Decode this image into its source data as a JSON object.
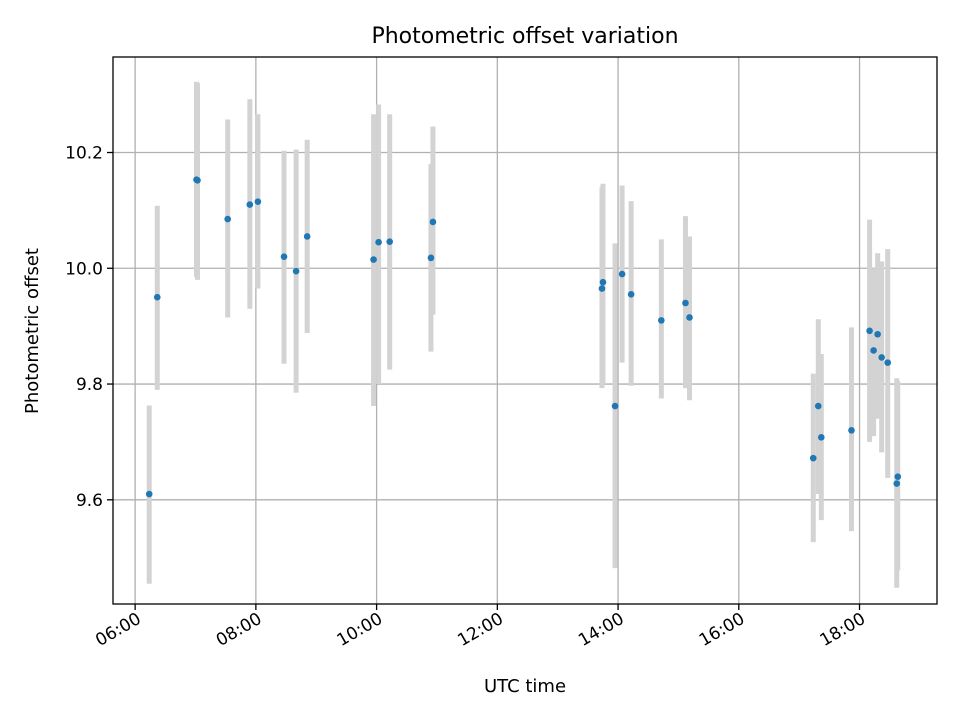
{
  "chart_data": {
    "type": "scatter",
    "title": "Photometric offset variation",
    "xlabel": "UTC time",
    "ylabel": "Photometric offset",
    "x_ticks": [
      "06:00",
      "08:00",
      "10:00",
      "12:00",
      "14:00",
      "16:00",
      "18:00"
    ],
    "y_ticks": [
      "9.6",
      "9.8",
      "10.0",
      "10.2"
    ],
    "xlim": [
      "05:38",
      "19:17"
    ],
    "ylim": [
      9.42,
      10.365
    ],
    "grid": true,
    "marker_color": "#1f77b4",
    "errorbar_color": "#d3d3d3",
    "points": [
      {
        "x": "06:14",
        "y": 9.61,
        "ylo": 9.455,
        "yhi": 9.763
      },
      {
        "x": "06:22",
        "y": 9.95,
        "ylo": 9.79,
        "yhi": 10.108
      },
      {
        "x": "07:01",
        "y": 10.153,
        "ylo": 9.985,
        "yhi": 10.322
      },
      {
        "x": "07:02",
        "y": 10.152,
        "ylo": 9.98,
        "yhi": 10.32
      },
      {
        "x": "07:32",
        "y": 10.085,
        "ylo": 9.915,
        "yhi": 10.257
      },
      {
        "x": "07:54",
        "y": 10.11,
        "ylo": 9.93,
        "yhi": 10.292
      },
      {
        "x": "08:02",
        "y": 10.115,
        "ylo": 9.965,
        "yhi": 10.266
      },
      {
        "x": "08:28",
        "y": 10.02,
        "ylo": 9.835,
        "yhi": 10.203
      },
      {
        "x": "08:40",
        "y": 9.995,
        "ylo": 9.785,
        "yhi": 10.205
      },
      {
        "x": "08:51",
        "y": 10.055,
        "ylo": 9.888,
        "yhi": 10.222
      },
      {
        "x": "09:57",
        "y": 10.015,
        "ylo": 9.762,
        "yhi": 10.266
      },
      {
        "x": "10:02",
        "y": 10.045,
        "ylo": 9.8,
        "yhi": 10.283
      },
      {
        "x": "10:13",
        "y": 10.046,
        "ylo": 9.825,
        "yhi": 10.266
      },
      {
        "x": "10:54",
        "y": 10.018,
        "ylo": 9.856,
        "yhi": 10.18
      },
      {
        "x": "10:56",
        "y": 10.08,
        "ylo": 9.92,
        "yhi": 10.245
      },
      {
        "x": "13:44",
        "y": 9.965,
        "ylo": 9.793,
        "yhi": 10.14
      },
      {
        "x": "13:45",
        "y": 9.976,
        "ylo": 9.8,
        "yhi": 10.146
      },
      {
        "x": "13:57",
        "y": 9.762,
        "ylo": 9.482,
        "yhi": 10.043
      },
      {
        "x": "14:04",
        "y": 9.99,
        "ylo": 9.837,
        "yhi": 10.143
      },
      {
        "x": "14:13",
        "y": 9.955,
        "ylo": 9.797,
        "yhi": 10.116
      },
      {
        "x": "14:43",
        "y": 9.91,
        "ylo": 9.775,
        "yhi": 10.05
      },
      {
        "x": "15:07",
        "y": 9.94,
        "ylo": 9.793,
        "yhi": 10.09
      },
      {
        "x": "15:11",
        "y": 9.915,
        "ylo": 9.772,
        "yhi": 10.055
      },
      {
        "x": "17:14",
        "y": 9.672,
        "ylo": 9.527,
        "yhi": 9.818
      },
      {
        "x": "17:19",
        "y": 9.762,
        "ylo": 9.61,
        "yhi": 9.912
      },
      {
        "x": "17:22",
        "y": 9.708,
        "ylo": 9.565,
        "yhi": 9.852
      },
      {
        "x": "17:52",
        "y": 9.72,
        "ylo": 9.546,
        "yhi": 9.898
      },
      {
        "x": "18:10",
        "y": 9.892,
        "ylo": 9.7,
        "yhi": 10.084
      },
      {
        "x": "18:14",
        "y": 9.858,
        "ylo": 9.71,
        "yhi": 10.0
      },
      {
        "x": "18:18",
        "y": 9.886,
        "ylo": 9.74,
        "yhi": 10.026
      },
      {
        "x": "18:22",
        "y": 9.846,
        "ylo": 9.682,
        "yhi": 10.012
      },
      {
        "x": "18:28",
        "y": 9.837,
        "ylo": 9.638,
        "yhi": 10.033
      },
      {
        "x": "18:37",
        "y": 9.628,
        "ylo": 9.448,
        "yhi": 9.81
      },
      {
        "x": "18:38",
        "y": 9.64,
        "ylo": 9.478,
        "yhi": 9.805
      }
    ]
  }
}
